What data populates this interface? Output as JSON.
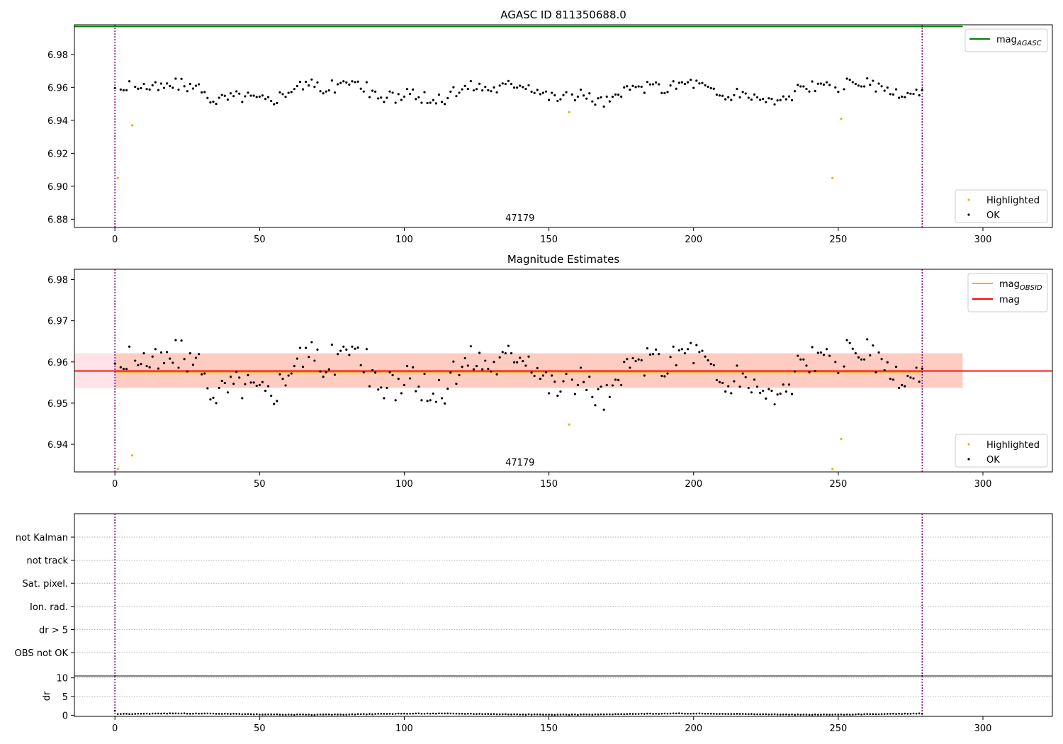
{
  "colors": {
    "ok": "#000000",
    "highlighted": "#ffa500",
    "mag_agasc": "#008000",
    "mag_obsid": "#ffa500",
    "mag": "#ff0000",
    "band_outer": "#ffc0cb",
    "band_inner": "#ffa07a",
    "obs_boundary": "#800080",
    "grid": "#b0b0b0"
  },
  "chart_data": [
    {
      "type": "scatter",
      "title": "AGASC ID 811350688.0",
      "annotation": "47179",
      "xlim": [
        -14,
        324
      ],
      "ylim": [
        6.875,
        6.998
      ],
      "xticks": [
        0,
        50,
        100,
        150,
        200,
        250,
        300
      ],
      "yticks": [
        6.88,
        6.9,
        6.92,
        6.94,
        6.96,
        6.98
      ],
      "ytick_labels": [
        "6.88",
        "6.90",
        "6.92",
        "6.94",
        "6.96",
        "6.98"
      ],
      "legend_lines": [
        {
          "label": "mag",
          "sub": "AGASC"
        }
      ],
      "legend_points": [
        "Highlighted",
        "OK"
      ],
      "mag_agasc": 6.997,
      "obs_boundaries": [
        0,
        279
      ],
      "series": [
        {
          "name": "Highlighted",
          "x": [
            1,
            6,
            157,
            248,
            251
          ],
          "y": [
            6.905,
            6.937,
            6.945,
            6.905,
            6.941
          ]
        },
        {
          "name": "OK",
          "x": [],
          "y": []
        }
      ]
    },
    {
      "type": "scatter",
      "title": "Magnitude Estimates",
      "annotation": "47179",
      "xlim": [
        -14,
        324
      ],
      "ylim": [
        6.9333,
        6.9825
      ],
      "xticks": [
        0,
        50,
        100,
        150,
        200,
        250,
        300
      ],
      "yticks": [
        6.94,
        6.95,
        6.96,
        6.97,
        6.98
      ],
      "ytick_labels": [
        "6.94",
        "6.95",
        "6.96",
        "6.97",
        "6.98"
      ],
      "legend_lines": [
        {
          "label": "mag",
          "sub": "OBSID"
        },
        {
          "label": "mag",
          "sub": ""
        }
      ],
      "legend_points": [
        "Highlighted",
        "OK"
      ],
      "mag": 6.9578,
      "mag_obsid": 6.9576,
      "band_outer": [
        6.9537,
        6.9621
      ],
      "band_inner": [
        6.9537,
        6.9621
      ],
      "band_x_end": 293,
      "obs_boundaries": [
        0,
        279
      ],
      "series": [
        {
          "name": "Highlighted",
          "x": [
            1,
            6,
            157,
            248,
            251
          ],
          "y": [
            6.934,
            6.9373,
            6.9448,
            6.934,
            6.9413
          ]
        },
        {
          "name": "OK",
          "x": [],
          "y": []
        }
      ]
    },
    {
      "type": "scatter",
      "title": "",
      "xlim": [
        -14,
        324
      ],
      "categories": [
        "not Kalman",
        "not track",
        "Sat. pixel.",
        "Ion. rad.",
        "dr > 5",
        "OBS not OK"
      ],
      "obs_boundaries": [
        0,
        279
      ]
    },
    {
      "type": "scatter",
      "title": "",
      "ylabel": "dr",
      "xlim": [
        -14,
        324
      ],
      "ylim": [
        -0.3,
        10.5
      ],
      "xticks": [
        0,
        50,
        100,
        150,
        200,
        250,
        300
      ],
      "yticks": [
        0,
        5,
        10
      ],
      "ytick_labels": [
        "0",
        "5",
        "10"
      ],
      "obs_boundaries": [
        0,
        279
      ],
      "series": [
        {
          "name": "dr",
          "x": [],
          "y": []
        }
      ]
    }
  ]
}
